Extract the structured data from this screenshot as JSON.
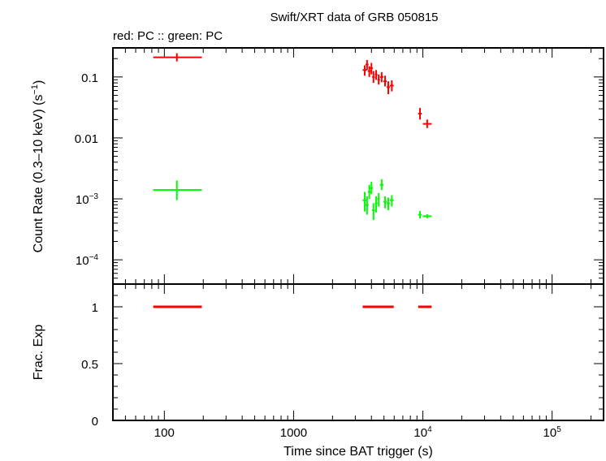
{
  "title": "Swift/XRT data of GRB 050815",
  "subtitle": "red: PC  :: green: PC",
  "colors": {
    "red": "#ff0000",
    "green": "#00ff00",
    "axis": "#000000"
  },
  "chart_data": [
    {
      "type": "scatter",
      "panel": "top",
      "ylabel": "Count Rate (0.3–10 keV) (s",
      "ylabel_sup": "−1",
      "ylabel_end": ")",
      "xscale": "log",
      "yscale": "log",
      "xlim": [
        40,
        250000
      ],
      "ylim": [
        4e-05,
        0.3
      ],
      "yticks": [
        {
          "value": 0.1,
          "label": "0.1"
        },
        {
          "value": 0.01,
          "label": "0.01"
        },
        {
          "value": 0.001,
          "base": "10",
          "exp": "−3"
        },
        {
          "value": 0.0001,
          "base": "10",
          "exp": "−4"
        }
      ],
      "series": [
        {
          "color": "#ff0000",
          "points": [
            {
              "x": 125,
              "xlo": 82,
              "xhi": 195,
              "y": 0.21,
              "ylo": 0.18,
              "yhi": 0.245
            },
            {
              "x": 3550,
              "xlo": 3420,
              "xhi": 3680,
              "y": 0.13,
              "ylo": 0.105,
              "yhi": 0.155
            },
            {
              "x": 3700,
              "xlo": 3600,
              "xhi": 3800,
              "y": 0.16,
              "ylo": 0.13,
              "yhi": 0.19
            },
            {
              "x": 3850,
              "xlo": 3750,
              "xhi": 3950,
              "y": 0.125,
              "ylo": 0.1,
              "yhi": 0.15
            },
            {
              "x": 4000,
              "xlo": 3900,
              "xhi": 4100,
              "y": 0.14,
              "ylo": 0.11,
              "yhi": 0.17
            },
            {
              "x": 4150,
              "xlo": 4050,
              "xhi": 4250,
              "y": 0.1,
              "ylo": 0.08,
              "yhi": 0.125
            },
            {
              "x": 4350,
              "xlo": 4250,
              "xhi": 4450,
              "y": 0.11,
              "ylo": 0.09,
              "yhi": 0.13
            },
            {
              "x": 4550,
              "xlo": 4450,
              "xhi": 4650,
              "y": 0.09,
              "ylo": 0.075,
              "yhi": 0.11
            },
            {
              "x": 4800,
              "xlo": 4650,
              "xhi": 4950,
              "y": 0.1,
              "ylo": 0.082,
              "yhi": 0.12
            },
            {
              "x": 5100,
              "xlo": 4950,
              "xhi": 5250,
              "y": 0.085,
              "ylo": 0.07,
              "yhi": 0.105
            },
            {
              "x": 5400,
              "xlo": 5250,
              "xhi": 5550,
              "y": 0.068,
              "ylo": 0.052,
              "yhi": 0.085
            },
            {
              "x": 5750,
              "xlo": 5550,
              "xhi": 5950,
              "y": 0.072,
              "ylo": 0.058,
              "yhi": 0.088
            },
            {
              "x": 9500,
              "xlo": 9200,
              "xhi": 9800,
              "y": 0.025,
              "ylo": 0.02,
              "yhi": 0.031
            },
            {
              "x": 10800,
              "xlo": 10000,
              "xhi": 11700,
              "y": 0.017,
              "ylo": 0.0145,
              "yhi": 0.02
            }
          ]
        },
        {
          "color": "#00ff00",
          "points": [
            {
              "x": 125,
              "xlo": 82,
              "xhi": 195,
              "y": 0.0014,
              "ylo": 0.00095,
              "yhi": 0.002
            },
            {
              "x": 3550,
              "xlo": 3420,
              "xhi": 3680,
              "y": 0.00095,
              "ylo": 0.00062,
              "yhi": 0.0013
            },
            {
              "x": 3700,
              "xlo": 3600,
              "xhi": 3800,
              "y": 0.0008,
              "ylo": 0.00055,
              "yhi": 0.0011
            },
            {
              "x": 3850,
              "xlo": 3750,
              "xhi": 3950,
              "y": 0.0013,
              "ylo": 0.001,
              "yhi": 0.0017
            },
            {
              "x": 4000,
              "xlo": 3900,
              "xhi": 4100,
              "y": 0.0015,
              "ylo": 0.0012,
              "yhi": 0.0019
            },
            {
              "x": 4150,
              "xlo": 4050,
              "xhi": 4250,
              "y": 0.00065,
              "ylo": 0.00045,
              "yhi": 0.00085
            },
            {
              "x": 4350,
              "xlo": 4250,
              "xhi": 4450,
              "y": 0.00085,
              "ylo": 0.0006,
              "yhi": 0.0011
            },
            {
              "x": 4550,
              "xlo": 4450,
              "xhi": 4650,
              "y": 0.001,
              "ylo": 0.00075,
              "yhi": 0.00125
            },
            {
              "x": 4800,
              "xlo": 4650,
              "xhi": 4950,
              "y": 0.0017,
              "ylo": 0.0014,
              "yhi": 0.0021
            },
            {
              "x": 5100,
              "xlo": 4950,
              "xhi": 5250,
              "y": 0.0009,
              "ylo": 0.0007,
              "yhi": 0.0011
            },
            {
              "x": 5400,
              "xlo": 5250,
              "xhi": 5550,
              "y": 0.00085,
              "ylo": 0.00065,
              "yhi": 0.00105
            },
            {
              "x": 5750,
              "xlo": 5550,
              "xhi": 5950,
              "y": 0.00095,
              "ylo": 0.00075,
              "yhi": 0.00115
            },
            {
              "x": 9500,
              "xlo": 9200,
              "xhi": 9800,
              "y": 0.00055,
              "ylo": 0.00048,
              "yhi": 0.00063
            },
            {
              "x": 10800,
              "xlo": 10000,
              "xhi": 11700,
              "y": 0.00052,
              "ylo": 0.00048,
              "yhi": 0.00056
            }
          ]
        }
      ]
    },
    {
      "type": "scatter",
      "panel": "bottom",
      "ylabel": "Frac. Exp",
      "xlabel": "Time since BAT trigger (s)",
      "xscale": "log",
      "xlim": [
        40,
        250000
      ],
      "ylim": [
        0,
        1.2
      ],
      "yticks": [
        {
          "value": 0,
          "label": "0"
        },
        {
          "value": 0.5,
          "label": "0.5"
        },
        {
          "value": 1,
          "label": "1"
        }
      ],
      "xticks": [
        {
          "value": 100,
          "label": "100"
        },
        {
          "value": 1000,
          "label": "1000"
        },
        {
          "value": 10000,
          "base": "10",
          "exp": "4"
        },
        {
          "value": 100000,
          "base": "10",
          "exp": "5"
        }
      ],
      "series": [
        {
          "color": "#ff0000",
          "segments": [
            {
              "xlo": 82,
              "xhi": 195,
              "y": 1
            },
            {
              "xlo": 3420,
              "xhi": 5950,
              "y": 1
            },
            {
              "xlo": 9200,
              "xhi": 11700,
              "y": 1
            }
          ]
        }
      ]
    }
  ]
}
